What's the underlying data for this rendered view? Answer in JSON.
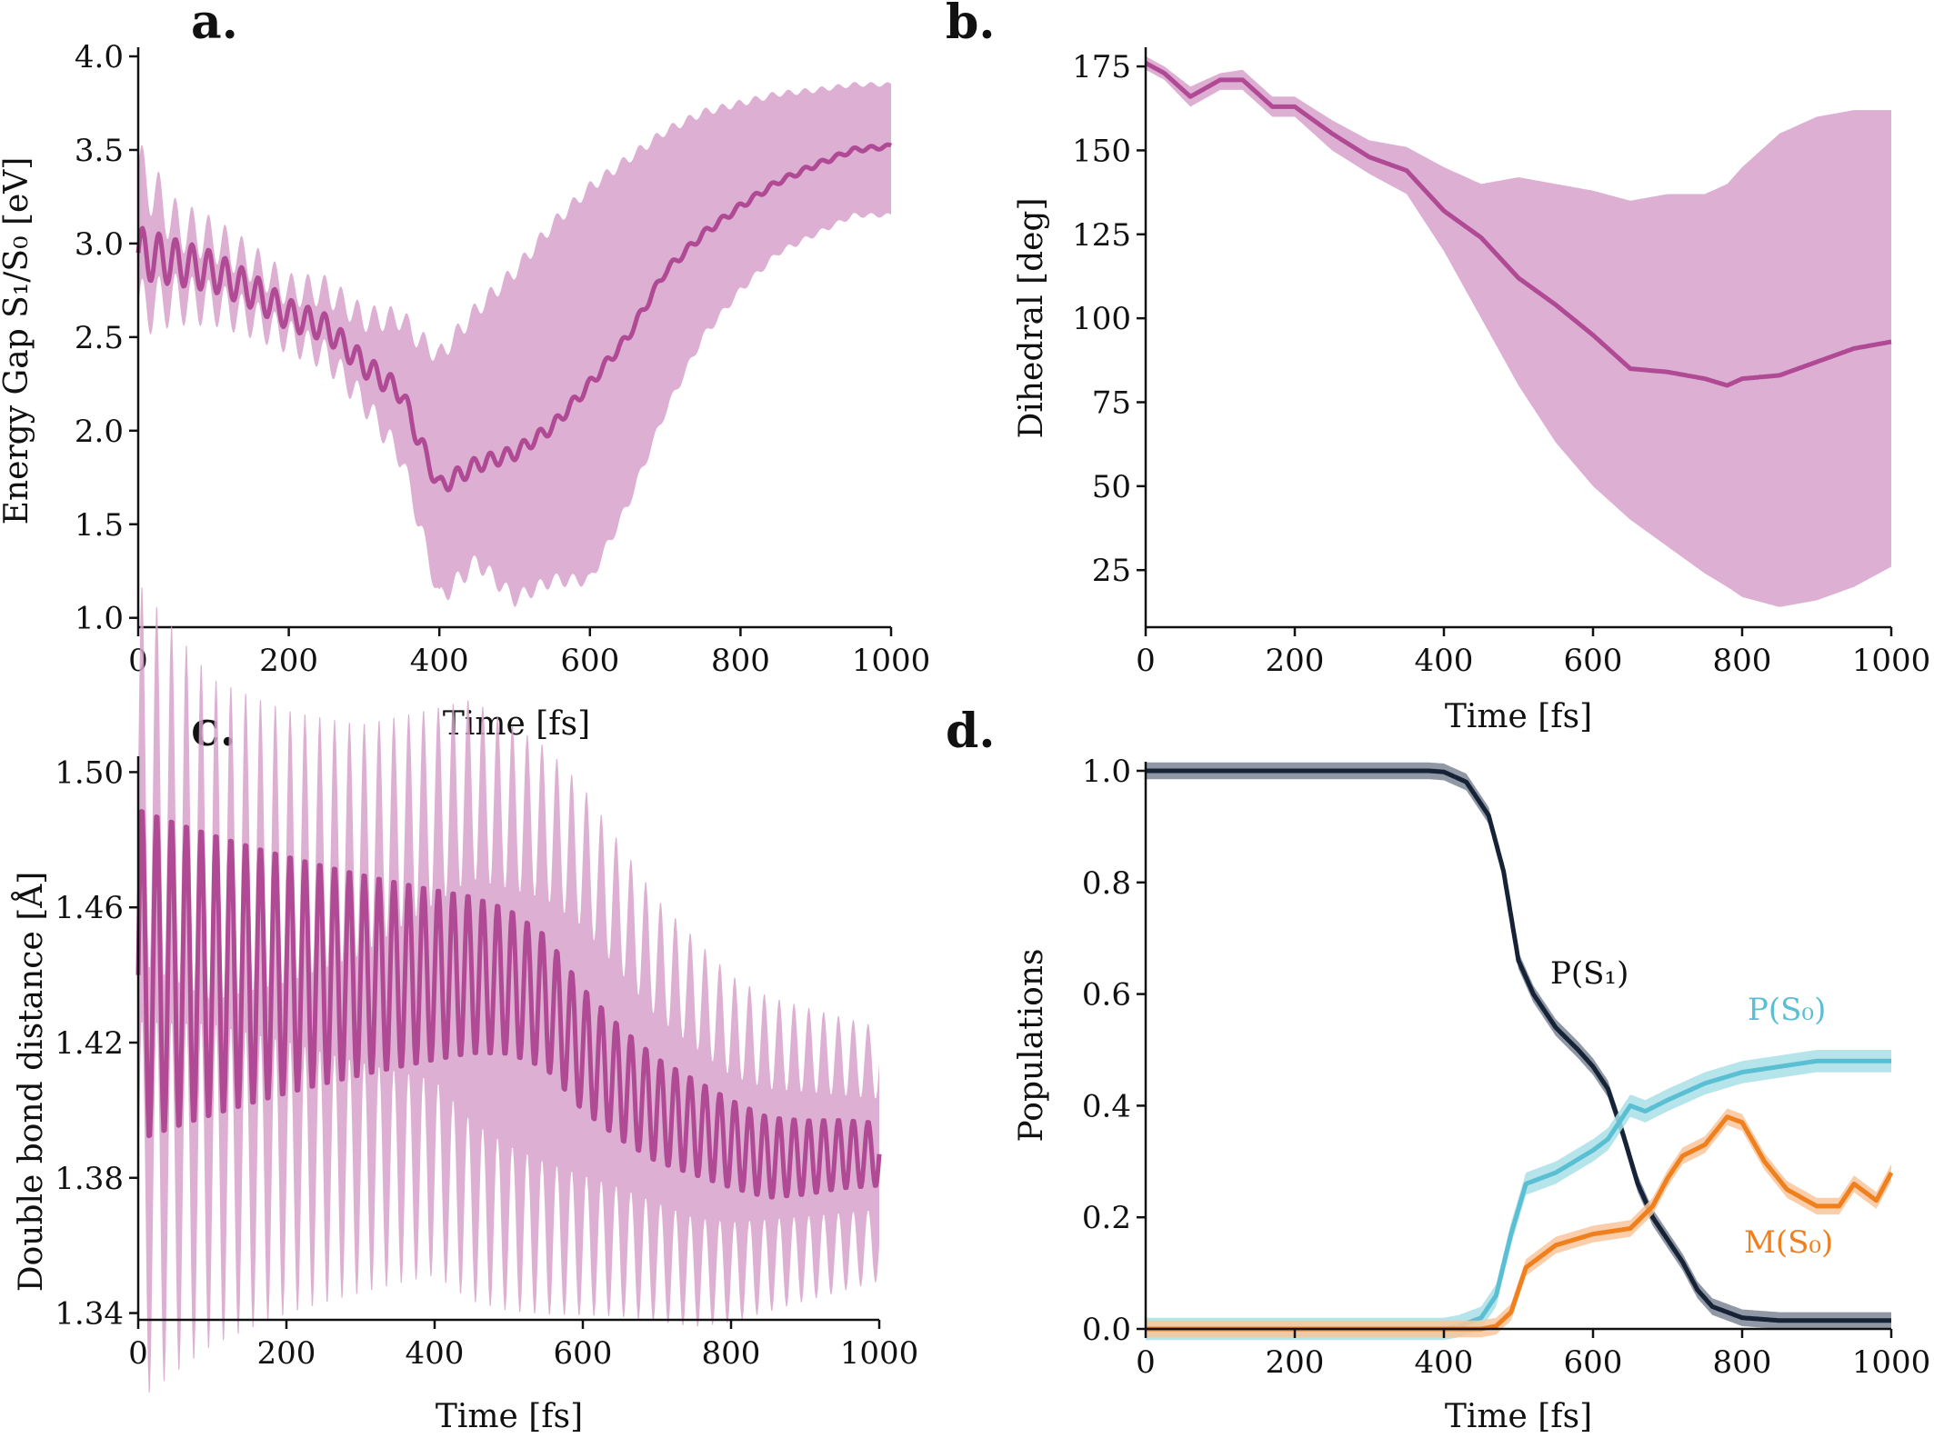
{
  "chart_data": [
    {
      "panel": "a.",
      "type": "line",
      "xlabel": "Time  [fs]",
      "ylabel": "Energy  Gap  S₁/S₀  [eV]",
      "xlim": [
        0,
        1000
      ],
      "ylim": [
        0.95,
        4.0
      ],
      "xticks": [
        0,
        200,
        400,
        600,
        800,
        1000
      ],
      "yticks": [
        1.0,
        1.5,
        2.0,
        2.5,
        3.0,
        3.5,
        4.0
      ],
      "ytick_labels": [
        "1.0",
        "1.5",
        "2.0",
        "2.5",
        "3.0",
        "3.5",
        "4.0"
      ],
      "series": [
        {
          "name": "mean",
          "color": "#b04a95",
          "band_color": "#d7a2cb",
          "x": [
            0,
            50,
            100,
            150,
            200,
            250,
            300,
            350,
            370,
            400,
            450,
            500,
            550,
            600,
            650,
            700,
            750,
            800,
            850,
            900,
            950,
            1000
          ],
          "mean": [
            2.95,
            2.9,
            2.85,
            2.75,
            2.62,
            2.55,
            2.35,
            2.2,
            1.98,
            1.7,
            1.82,
            1.88,
            2.02,
            2.25,
            2.5,
            2.85,
            3.05,
            3.2,
            3.33,
            3.42,
            3.5,
            3.52
          ],
          "lower": [
            2.65,
            2.7,
            2.68,
            2.6,
            2.5,
            2.4,
            2.15,
            1.85,
            1.55,
            1.1,
            1.3,
            1.1,
            1.2,
            1.2,
            1.6,
            2.1,
            2.5,
            2.75,
            2.95,
            3.05,
            3.15,
            3.15
          ],
          "upper": [
            3.4,
            3.1,
            3.02,
            2.9,
            2.75,
            2.75,
            2.6,
            2.6,
            2.5,
            2.4,
            2.65,
            2.85,
            3.1,
            3.3,
            3.45,
            3.6,
            3.7,
            3.75,
            3.8,
            3.82,
            3.85,
            3.85
          ],
          "osc_amp": 0.14,
          "osc_period": 22,
          "osc_decay": 380
        }
      ]
    },
    {
      "panel": "b.",
      "type": "line",
      "xlabel": "Time  [fs]",
      "ylabel": "Dihedral  [deg]",
      "xlim": [
        0,
        1000
      ],
      "ylim": [
        8,
        178
      ],
      "xticks": [
        0,
        200,
        400,
        600,
        800,
        1000
      ],
      "yticks": [
        25,
        50,
        75,
        100,
        125,
        150,
        175
      ],
      "ytick_labels": [
        "25",
        "50",
        "75",
        "100",
        "125",
        "150",
        "175"
      ],
      "series": [
        {
          "name": "mean",
          "color": "#b04a95",
          "band_color": "#d7a2cb",
          "x": [
            0,
            25,
            60,
            100,
            130,
            170,
            200,
            250,
            300,
            350,
            400,
            450,
            500,
            550,
            600,
            650,
            700,
            750,
            780,
            800,
            850,
            900,
            950,
            1000
          ],
          "mean": [
            176,
            173,
            166,
            171,
            171,
            163,
            163,
            155,
            148,
            144,
            132,
            124,
            112,
            104,
            95,
            85,
            84,
            82,
            80,
            82,
            83,
            87,
            91,
            93
          ],
          "lower": [
            174,
            171,
            163,
            168,
            168,
            160,
            160,
            150,
            143,
            137,
            120,
            100,
            80,
            63,
            50,
            40,
            32,
            24,
            20,
            17,
            14,
            16,
            20,
            26
          ],
          "upper": [
            178,
            175,
            169,
            173,
            174,
            166,
            166,
            159,
            153,
            151,
            145,
            140,
            142,
            140,
            138,
            135,
            137,
            137,
            140,
            145,
            155,
            160,
            162,
            162
          ]
        }
      ]
    },
    {
      "panel": "c.",
      "type": "line",
      "xlabel": "Time  [fs]",
      "ylabel": "Double  bond  distance  [Å]",
      "xlim": [
        0,
        1000
      ],
      "ylim": [
        1.338,
        1.502
      ],
      "xticks": [
        0,
        200,
        400,
        600,
        800,
        1000
      ],
      "yticks": [
        1.34,
        1.38,
        1.42,
        1.46,
        1.5
      ],
      "ytick_labels": [
        "1.34",
        "1.38",
        "1.42",
        "1.46",
        "1.50"
      ],
      "series": [
        {
          "name": "mean",
          "color": "#b04a95",
          "band_color": "#d7a2cb",
          "x": [
            0,
            100,
            200,
            300,
            400,
            450,
            500,
            550,
            600,
            650,
            700,
            750,
            800,
            850,
            900,
            950,
            1000
          ],
          "mean": [
            1.44,
            1.44,
            1.44,
            1.44,
            1.44,
            1.44,
            1.438,
            1.432,
            1.418,
            1.408,
            1.4,
            1.395,
            1.39,
            1.386,
            1.386,
            1.387,
            1.387
          ],
          "lower": [
            1.37,
            1.378,
            1.38,
            1.38,
            1.38,
            1.37,
            1.365,
            1.362,
            1.36,
            1.358,
            1.355,
            1.352,
            1.352,
            1.354,
            1.356,
            1.358,
            1.36
          ],
          "upper": [
            1.5,
            1.48,
            1.478,
            1.48,
            1.49,
            1.495,
            1.49,
            1.485,
            1.475,
            1.46,
            1.445,
            1.435,
            1.425,
            1.42,
            1.418,
            1.416,
            1.414
          ],
          "osc_amp": 0.05,
          "osc_period": 20,
          "osc_decay": 600
        }
      ]
    },
    {
      "panel": "d.",
      "type": "line",
      "xlabel": "Time  [fs]",
      "ylabel": "Populations",
      "xlim": [
        0,
        1000
      ],
      "ylim": [
        0,
        1.0
      ],
      "xticks": [
        0,
        200,
        400,
        600,
        800,
        1000
      ],
      "yticks": [
        0.0,
        0.2,
        0.4,
        0.6,
        0.8,
        1.0
      ],
      "ytick_labels": [
        "0.0",
        "0.2",
        "0.4",
        "0.6",
        "0.8",
        "1.0"
      ],
      "series": [
        {
          "name": "P(S₁)",
          "color": "#162236",
          "band_color": "#7d8695",
          "x": [
            0,
            380,
            400,
            430,
            460,
            480,
            500,
            520,
            550,
            580,
            600,
            620,
            640,
            660,
            680,
            700,
            720,
            740,
            760,
            800,
            850,
            1000
          ],
          "mean": [
            1.0,
            1.0,
            0.998,
            0.98,
            0.92,
            0.82,
            0.66,
            0.6,
            0.54,
            0.5,
            0.47,
            0.43,
            0.35,
            0.26,
            0.2,
            0.16,
            0.12,
            0.07,
            0.04,
            0.02,
            0.015,
            0.015
          ],
          "half_width": 0.015
        },
        {
          "name": "P(S₀)",
          "color": "#5bbfd3",
          "band_color": "#a9dfe8",
          "x": [
            0,
            400,
            420,
            450,
            470,
            490,
            510,
            550,
            600,
            620,
            640,
            650,
            670,
            700,
            750,
            800,
            850,
            900,
            1000
          ],
          "mean": [
            0.0,
            0.0,
            0.005,
            0.02,
            0.06,
            0.17,
            0.26,
            0.28,
            0.32,
            0.34,
            0.38,
            0.4,
            0.39,
            0.41,
            0.44,
            0.46,
            0.47,
            0.48,
            0.48
          ],
          "half_width": 0.02
        },
        {
          "name": "M(S₀)",
          "color": "#f07f1e",
          "band_color": "#f9c69b",
          "x": [
            0,
            450,
            470,
            490,
            510,
            550,
            600,
            650,
            680,
            700,
            720,
            750,
            780,
            800,
            830,
            860,
            900,
            930,
            950,
            980,
            1000
          ],
          "mean": [
            0.0,
            0.0,
            0.005,
            0.03,
            0.11,
            0.15,
            0.17,
            0.18,
            0.22,
            0.27,
            0.31,
            0.33,
            0.38,
            0.37,
            0.3,
            0.25,
            0.22,
            0.22,
            0.26,
            0.23,
            0.28
          ],
          "half_width": 0.015
        }
      ]
    }
  ]
}
